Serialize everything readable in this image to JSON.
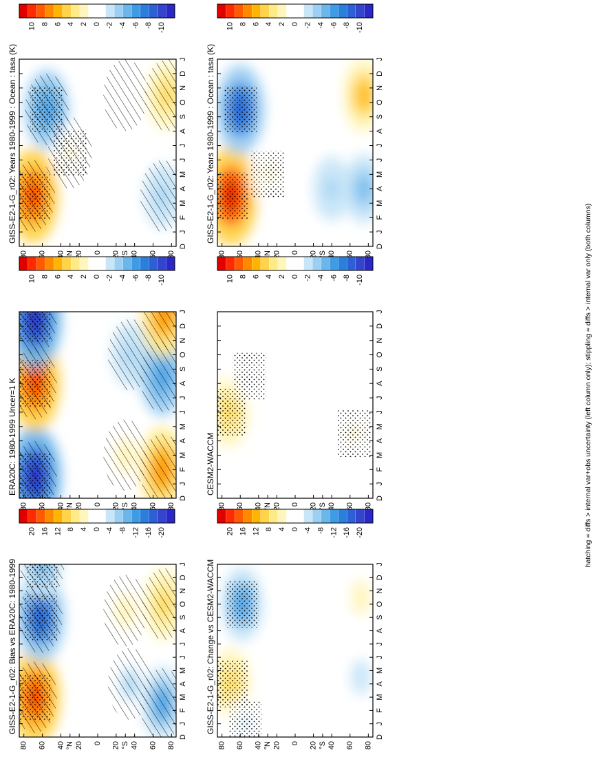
{
  "figure": {
    "footnote": "hatching = diffs > internal var+obs uncertainty (left column only); stippling = diffs > internal var only (both columns)",
    "lat_labels": [
      "80",
      "60",
      "40",
      "°N",
      "20",
      "0",
      "20",
      "°S",
      "40",
      "60",
      "80"
    ],
    "month_labels": [
      "D",
      "J",
      "F",
      "M",
      "A",
      "M",
      "J",
      "J",
      "A",
      "S",
      "O",
      "N",
      "D",
      "J"
    ],
    "colorbars": {
      "standard": [
        "10",
        "8",
        "6",
        "4",
        "2",
        "0",
        "-2",
        "-4",
        "-6",
        "-8",
        "-10"
      ],
      "wide": [
        "20",
        "16",
        "12",
        "8",
        "4",
        "0",
        "-4",
        "-8",
        "-12",
        "-16",
        "-20"
      ]
    },
    "palette": [
      "#e00000",
      "#ff2a00",
      "#ff5a00",
      "#ff8a00",
      "#ffb400",
      "#ffd34a",
      "#ffea8a",
      "#fff6bc",
      "#ffffff",
      "#ffffff",
      "#c8e6f8",
      "#9ccff2",
      "#6bb6ea",
      "#3f9ce4",
      "#2a7fdc",
      "#2e5fd4",
      "#3345cc",
      "#2a28c8"
    ]
  },
  "panels": [
    {
      "id": "p1",
      "title": "GISS-E2-1-G_r02: Years 1980-1999 : Ocean : tasa (K)",
      "colorbar": "standard"
    },
    {
      "id": "p2",
      "title": "GISS-E2-1-G_r02: Years 1980-1999 : Ocean : tasa (K)",
      "colorbar": "standard"
    },
    {
      "id": "p3",
      "title": "ERA20C: 1980-1999 Uncer=1 K",
      "colorbar": "standard"
    },
    {
      "id": "p4",
      "title": "CESM2-WACCM",
      "colorbar": "standard"
    },
    {
      "id": "p5",
      "title": "GISS-E2-1-G_r02: Bias vs ERA20C: 1980-1999",
      "colorbar": "wide"
    },
    {
      "id": "p6",
      "title": "GISS-E2-1-G_r02: Change vs CESM2-WACCM",
      "colorbar": "wide"
    }
  ],
  "chart_data": [
    {
      "type": "heatmap",
      "panel": "p1",
      "title": "GISS-E2-1-G_r02: Years 1980-1999 : Ocean : tasa (K)",
      "x": [
        "D",
        "J",
        "F",
        "M",
        "A",
        "M",
        "J",
        "J",
        "A",
        "S",
        "O",
        "N",
        "D",
        "J"
      ],
      "y": [
        "80N",
        "60N",
        "40N",
        "20N",
        "0",
        "20S",
        "40S",
        "60S",
        "80S"
      ],
      "clim": [
        -11,
        11
      ],
      "features": [
        {
          "lat": 70,
          "month": 3.5,
          "value": 9
        },
        {
          "lat": 55,
          "month": 9.5,
          "value": -6
        },
        {
          "lat": 30,
          "month": 6.5,
          "value": 1.5
        },
        {
          "lat": -30,
          "month": 10.5,
          "value": 1
        },
        {
          "lat": -70,
          "month": 3.5,
          "value": -3
        },
        {
          "lat": -75,
          "month": 10.5,
          "value": 4
        }
      ],
      "hatching": true,
      "stippling": true
    },
    {
      "type": "heatmap",
      "panel": "p2",
      "title": "GISS-E2-1-G_r02: Years 1980-1999 : Ocean : tasa (K)",
      "x": [
        "D",
        "J",
        "F",
        "M",
        "A",
        "M",
        "J",
        "J",
        "A",
        "S",
        "O",
        "N",
        "D",
        "J"
      ],
      "y": [
        "80N",
        "60N",
        "40N",
        "20N",
        "0",
        "20S",
        "40S",
        "60S",
        "80S"
      ],
      "clim": [
        -11,
        11
      ],
      "features": [
        {
          "lat": 70,
          "month": 3.5,
          "value": 10
        },
        {
          "lat": 60,
          "month": 9.5,
          "value": -8
        },
        {
          "lat": 30,
          "month": 5,
          "value": 1.5
        },
        {
          "lat": -40,
          "month": 4,
          "value": -3
        },
        {
          "lat": -30,
          "month": 10.5,
          "value": 1
        },
        {
          "lat": -75,
          "month": 4,
          "value": -4
        },
        {
          "lat": -75,
          "month": 10.5,
          "value": 5
        }
      ],
      "hatching": false,
      "stippling": true
    },
    {
      "type": "heatmap",
      "panel": "p3",
      "title": "ERA20C: 1980-1999 Uncer=1 K",
      "x": [
        "D",
        "J",
        "F",
        "M",
        "A",
        "M",
        "J",
        "J",
        "A",
        "S",
        "O",
        "N",
        "D",
        "J"
      ],
      "y": [
        "80N",
        "60N",
        "40N",
        "20N",
        "0",
        "20S",
        "40S",
        "60S",
        "80S"
      ],
      "clim": [
        -11,
        11
      ],
      "features": [
        {
          "lat": 68,
          "month": 1.5,
          "value": -10
        },
        {
          "lat": 68,
          "month": 8,
          "value": 9
        },
        {
          "lat": 68,
          "month": 12.5,
          "value": -10
        },
        {
          "lat": -30,
          "month": 3,
          "value": 2
        },
        {
          "lat": -35,
          "month": 10,
          "value": -3
        },
        {
          "lat": -70,
          "month": 2,
          "value": 7
        },
        {
          "lat": -70,
          "month": 8.5,
          "value": -6
        },
        {
          "lat": -72,
          "month": 12.8,
          "value": 7
        }
      ],
      "hatching": true,
      "stippling": true
    },
    {
      "type": "heatmap",
      "panel": "p4",
      "title": "CESM2-WACCM",
      "x": [
        "D",
        "J",
        "F",
        "M",
        "A",
        "M",
        "J",
        "J",
        "A",
        "S",
        "O",
        "N",
        "D",
        "J"
      ],
      "y": [
        "80N",
        "60N",
        "40N",
        "20N",
        "0",
        "20S",
        "40S",
        "60S",
        "80S"
      ],
      "clim": [
        -11,
        11
      ],
      "features": [
        {
          "lat": 72,
          "month": 6,
          "value": 4
        },
        {
          "lat": 50,
          "month": 8.5,
          "value": 1
        },
        {
          "lat": -65,
          "month": 4.5,
          "value": 1.5
        },
        {
          "lat": -60,
          "month": 9.5,
          "value": 1
        }
      ],
      "hatching": false,
      "stippling": true
    },
    {
      "type": "heatmap",
      "panel": "p5",
      "title": "GISS-E2-1-G_r02: Bias vs ERA20C: 1980-1999",
      "x": [
        "D",
        "J",
        "F",
        "M",
        "A",
        "M",
        "J",
        "J",
        "A",
        "S",
        "O",
        "N",
        "D",
        "J"
      ],
      "y": [
        "80N",
        "60N",
        "40N",
        "20N",
        "0",
        "20S",
        "40S",
        "60S",
        "80S"
      ],
      "clim": [
        -22,
        22
      ],
      "features": [
        {
          "lat": 68,
          "month": 3,
          "value": 18
        },
        {
          "lat": 62,
          "month": 9,
          "value": -16
        },
        {
          "lat": 60,
          "month": 13,
          "value": -8
        },
        {
          "lat": -35,
          "month": 4,
          "value": -5
        },
        {
          "lat": -30,
          "month": 9.5,
          "value": 4
        },
        {
          "lat": -70,
          "month": 2.5,
          "value": -10
        },
        {
          "lat": -72,
          "month": 10,
          "value": 9
        }
      ],
      "hatching": true,
      "stippling": true
    },
    {
      "type": "heatmap",
      "panel": "p6",
      "title": "GISS-E2-1-G_r02: Change vs CESM2-WACCM",
      "x": [
        "D",
        "J",
        "F",
        "M",
        "A",
        "M",
        "J",
        "J",
        "A",
        "S",
        "O",
        "N",
        "D",
        "J"
      ],
      "y": [
        "80N",
        "60N",
        "40N",
        "20N",
        "0",
        "20S",
        "40S",
        "60S",
        "80S"
      ],
      "clim": [
        -22,
        22
      ],
      "features": [
        {
          "lat": 70,
          "month": 4,
          "value": 8
        },
        {
          "lat": 58,
          "month": 10,
          "value": -10
        },
        {
          "lat": 55,
          "month": 1,
          "value": -3
        },
        {
          "lat": -72,
          "month": 4.5,
          "value": -4
        },
        {
          "lat": -72,
          "month": 10.5,
          "value": 4
        }
      ],
      "hatching": false,
      "stippling": true
    }
  ]
}
